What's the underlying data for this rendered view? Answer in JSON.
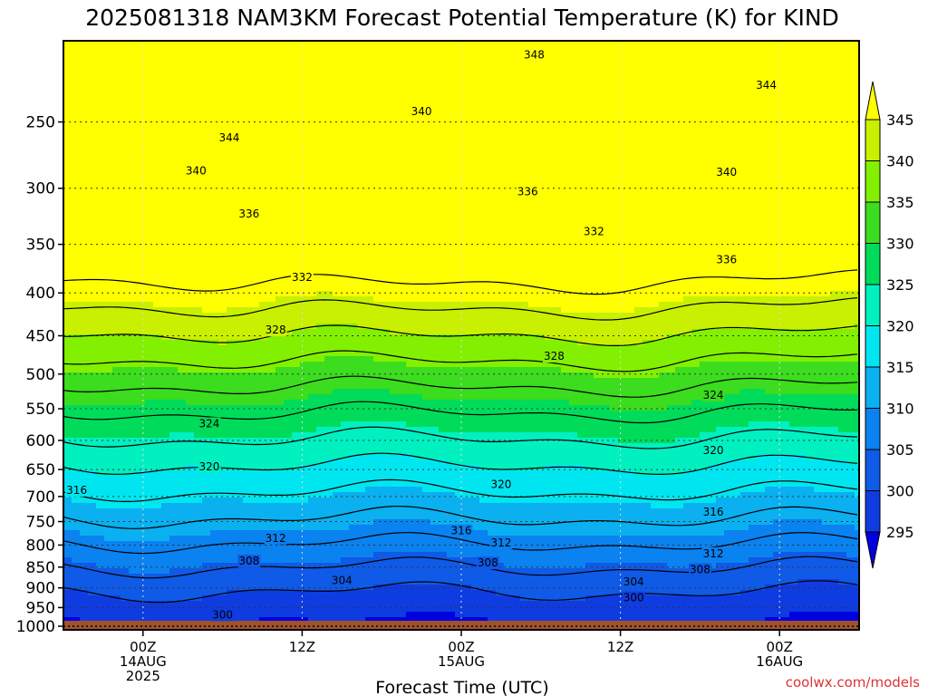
{
  "chart_data": {
    "type": "heatmap",
    "title": "2025081318 NAM3KM Forecast Potential Temperature (K) for KIND",
    "xlabel": "Forecast Time (UTC)",
    "ylabel": "",
    "y_axis": {
      "scale": "log",
      "reversed": true,
      "unit": "hPa",
      "range": [
        200,
        1010
      ],
      "ticks": [
        250,
        300,
        350,
        400,
        450,
        500,
        550,
        600,
        650,
        700,
        750,
        800,
        850,
        900,
        950,
        1000
      ]
    },
    "x_axis": {
      "range_hours": [
        -6,
        54
      ],
      "ticks": [
        {
          "hour": 0,
          "lines": [
            "00Z",
            "14AUG",
            "2025"
          ]
        },
        {
          "hour": 12,
          "lines": [
            "12Z"
          ]
        },
        {
          "hour": 24,
          "lines": [
            "00Z",
            "15AUG"
          ]
        },
        {
          "hour": 36,
          "lines": [
            "12Z"
          ]
        },
        {
          "hour": 48,
          "lines": [
            "00Z",
            "16AUG"
          ]
        }
      ]
    },
    "grid": true,
    "ground_level_hPa": 985,
    "colorbar": {
      "levels": [
        295,
        300,
        305,
        310,
        315,
        320,
        325,
        330,
        335,
        340,
        345
      ],
      "colors": [
        "#0000e0",
        "#0f3ce0",
        "#0f5ae6",
        "#0a82f0",
        "#0ab0f0",
        "#00e6f0",
        "#00f0c0",
        "#00dc5a",
        "#3cdc1e",
        "#82f000",
        "#c8f000",
        "#ffff00"
      ]
    },
    "contour_levels": [
      300,
      304,
      308,
      312,
      316,
      320,
      324,
      328,
      332,
      336,
      340,
      344,
      348
    ],
    "contour_labels": [
      {
        "value": "348",
        "hour": 29.5,
        "p": 208
      },
      {
        "value": "344",
        "hour": 47,
        "p": 226
      },
      {
        "value": "344",
        "hour": 6.5,
        "p": 261
      },
      {
        "value": "340",
        "hour": 21,
        "p": 243
      },
      {
        "value": "340",
        "hour": 4,
        "p": 286
      },
      {
        "value": "340",
        "hour": 44,
        "p": 287
      },
      {
        "value": "336",
        "hour": 29,
        "p": 303
      },
      {
        "value": "336",
        "hour": 8,
        "p": 322
      },
      {
        "value": "336",
        "hour": 44,
        "p": 365
      },
      {
        "value": "332",
        "hour": 34,
        "p": 338
      },
      {
        "value": "332",
        "hour": 12,
        "p": 383
      },
      {
        "value": "328",
        "hour": 10,
        "p": 443
      },
      {
        "value": "328",
        "hour": 31,
        "p": 476
      },
      {
        "value": "324",
        "hour": 43,
        "p": 530
      },
      {
        "value": "324",
        "hour": 5,
        "p": 573
      },
      {
        "value": "320",
        "hour": 43,
        "p": 617
      },
      {
        "value": "320",
        "hour": 5,
        "p": 645
      },
      {
        "value": "320",
        "hour": 27,
        "p": 677
      },
      {
        "value": "316",
        "hour": -5,
        "p": 688
      },
      {
        "value": "316",
        "hour": 43,
        "p": 731
      },
      {
        "value": "316",
        "hour": 24,
        "p": 769
      },
      {
        "value": "312",
        "hour": 10,
        "p": 785
      },
      {
        "value": "312",
        "hour": 27,
        "p": 795
      },
      {
        "value": "312",
        "hour": 43,
        "p": 819
      },
      {
        "value": "308",
        "hour": 8,
        "p": 836
      },
      {
        "value": "308",
        "hour": 26,
        "p": 840
      },
      {
        "value": "308",
        "hour": 42,
        "p": 856
      },
      {
        "value": "304",
        "hour": 15,
        "p": 882
      },
      {
        "value": "304",
        "hour": 37,
        "p": 885
      },
      {
        "value": "300",
        "hour": 37,
        "p": 925
      },
      {
        "value": "300",
        "hour": 6,
        "p": 969
      }
    ],
    "credit": "coolwx.com/models"
  }
}
